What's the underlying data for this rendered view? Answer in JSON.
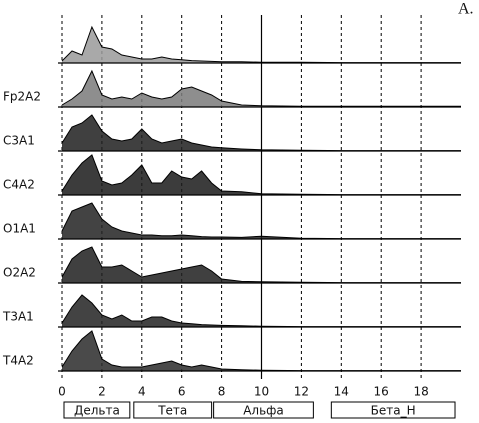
{
  "chart_data": {
    "type": "ridgeline",
    "panel_label": "А.",
    "x": [
      0,
      0.5,
      1,
      1.5,
      2,
      2.5,
      3,
      3.5,
      4,
      4.5,
      5,
      5.5,
      6,
      6.5,
      7,
      7.5,
      8,
      9,
      10,
      12,
      14,
      16,
      18,
      20
    ],
    "xlim": [
      0,
      20
    ],
    "xticks": [
      0,
      2,
      4,
      6,
      8,
      10,
      12,
      14,
      16,
      18
    ],
    "solid_line_x": 10,
    "grid": true,
    "ylim": [
      0,
      10
    ],
    "series": [
      {
        "name": null,
        "color": "#9a9a9a",
        "values": [
          0.5,
          3,
          2,
          9,
          4,
          3.5,
          2,
          1.5,
          1,
          1,
          1.5,
          1,
          0.8,
          0.6,
          0.5,
          0.4,
          0.3,
          0.3,
          0.2,
          0.2,
          0.1,
          0.1,
          0.1,
          0.1
        ]
      },
      {
        "name": "Fp2A2",
        "color": "#7a7a7a",
        "values": [
          0.5,
          2,
          4,
          9,
          3,
          2,
          2.5,
          2,
          3.5,
          2.5,
          2,
          2.5,
          4.5,
          5,
          4,
          3,
          1.5,
          0.5,
          0.3,
          0.2,
          0.2,
          0.2,
          0.2,
          0.2
        ]
      },
      {
        "name": "C3A1",
        "color": "#1e1e1e",
        "values": [
          2,
          6,
          7,
          9,
          5,
          3,
          2.5,
          3,
          5.5,
          3,
          2,
          2.5,
          3,
          2,
          1.5,
          1,
          0.8,
          0.5,
          0.3,
          0.2,
          0.1,
          0.1,
          0.1,
          0.1
        ]
      },
      {
        "name": "C4A2",
        "color": "#1a1a1a",
        "values": [
          1,
          5,
          8,
          10,
          3.5,
          2.5,
          3,
          5,
          7.5,
          3,
          3,
          6,
          4.5,
          4,
          6,
          3,
          1,
          0.8,
          0.3,
          0.2,
          0.1,
          0.1,
          0.1,
          0.1
        ]
      },
      {
        "name": "O1A1",
        "color": "#222222",
        "values": [
          2,
          7,
          8,
          9,
          5,
          3,
          2,
          1.5,
          1,
          1,
          0.8,
          0.8,
          1,
          0.8,
          0.6,
          0.5,
          0.5,
          0.4,
          0.7,
          0.2,
          0.1,
          0.1,
          0.1,
          0.1
        ]
      },
      {
        "name": "O2A2",
        "color": "#1e1e1e",
        "values": [
          1.5,
          6,
          8,
          9,
          4,
          4,
          4.5,
          3,
          1.5,
          2,
          2.5,
          3,
          3.5,
          4,
          4.5,
          3,
          1,
          0.4,
          0.3,
          0.2,
          0.1,
          0.1,
          0.1,
          0.1
        ]
      },
      {
        "name": "T3A1",
        "color": "#222222",
        "values": [
          1,
          5,
          8,
          6,
          3,
          2,
          3,
          1.5,
          1.5,
          2.5,
          2.5,
          1.5,
          1,
          0.8,
          0.6,
          0.5,
          0.4,
          0.3,
          0.2,
          0.1,
          0.1,
          0.1,
          0.1,
          0.1
        ]
      },
      {
        "name": "T4A2",
        "color": "#2a2a2a",
        "values": [
          1,
          5,
          8,
          10,
          3,
          1.5,
          1,
          1,
          1,
          1.5,
          2,
          2.5,
          1.5,
          1,
          1.5,
          1,
          0.5,
          0.3,
          0.2,
          0.1,
          0.1,
          0.1,
          0.1,
          0.1
        ]
      }
    ],
    "bands": [
      {
        "label": "Дельта",
        "range": [
          0.1,
          3.4
        ]
      },
      {
        "label": "Тета",
        "range": [
          3.6,
          7.5
        ]
      },
      {
        "label": "Альфа",
        "range": [
          7.6,
          12.6
        ]
      },
      {
        "label": "Бета_Н",
        "range": [
          13.5,
          19.7
        ]
      }
    ]
  }
}
